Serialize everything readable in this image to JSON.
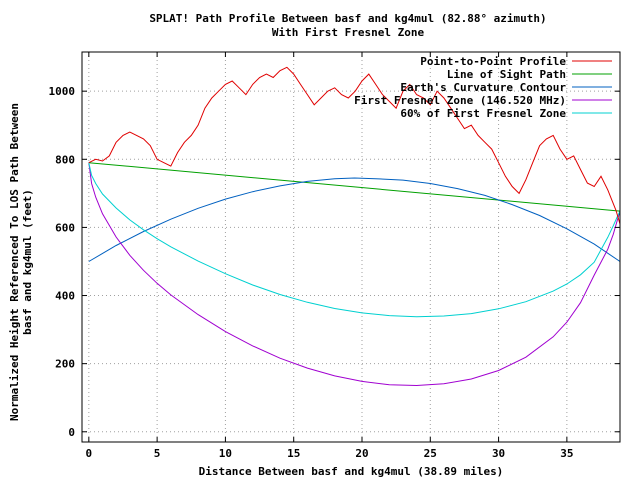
{
  "chart_data": {
    "type": "line",
    "title": "SPLAT! Path Profile Between basf and kg4mul (82.88° azimuth)",
    "subtitle": "With First Fresnel Zone",
    "xlabel": "Distance Between basf and kg4mul (38.89 miles)",
    "ylabel_line1": "Normalized Height Referenced To LOS Path Between",
    "ylabel_line2": "basf and kg4mul (feet)",
    "xlim": [
      -0.5,
      38.89
    ],
    "ylim": [
      -30,
      1115
    ],
    "xticks": [
      0,
      5,
      10,
      15,
      20,
      25,
      30,
      35
    ],
    "yticks": [
      0,
      200,
      400,
      600,
      800,
      1000
    ],
    "grid": true,
    "legend_position": "top-right",
    "series": [
      {
        "name": "Point-to-Point Profile",
        "color": "#e00000",
        "x": [
          0,
          0.5,
          1,
          1.5,
          2,
          2.5,
          3,
          3.5,
          4,
          4.5,
          5,
          5.5,
          6,
          6.5,
          7,
          7.5,
          8,
          8.5,
          9,
          9.5,
          10,
          10.5,
          11,
          11.5,
          12,
          12.5,
          13,
          13.5,
          14,
          14.5,
          15,
          15.5,
          16,
          16.5,
          17,
          17.5,
          18,
          18.5,
          19,
          19.5,
          20,
          20.5,
          21,
          21.5,
          22,
          22.5,
          23,
          23.5,
          24,
          24.5,
          25,
          25.5,
          26,
          26.5,
          27,
          27.5,
          28,
          28.5,
          29,
          29.5,
          30,
          30.5,
          31,
          31.5,
          32,
          32.5,
          33,
          33.5,
          34,
          34.5,
          35,
          35.5,
          36,
          36.5,
          37,
          37.5,
          38,
          38.3,
          38.6,
          38.89
        ],
        "y": [
          790,
          800,
          795,
          810,
          850,
          870,
          880,
          870,
          860,
          840,
          800,
          790,
          780,
          820,
          850,
          870,
          900,
          950,
          980,
          1000,
          1020,
          1030,
          1010,
          990,
          1020,
          1040,
          1050,
          1040,
          1060,
          1070,
          1050,
          1020,
          990,
          960,
          980,
          1000,
          1010,
          990,
          980,
          1000,
          1030,
          1050,
          1020,
          990,
          970,
          950,
          1000,
          1020,
          990,
          980,
          960,
          1000,
          980,
          950,
          920,
          890,
          900,
          870,
          850,
          830,
          790,
          750,
          720,
          700,
          740,
          790,
          840,
          860,
          870,
          830,
          800,
          810,
          770,
          730,
          720,
          750,
          710,
          680,
          650,
          610
        ]
      },
      {
        "name": "Line of Sight Path",
        "color": "#00a000",
        "x": [
          0,
          38.89
        ],
        "y": [
          790,
          648
        ]
      },
      {
        "name": "Earth's Curvature Contour",
        "color": "#0060c0",
        "x": [
          0,
          2,
          4,
          6,
          8,
          10,
          12,
          14,
          16,
          18,
          19.45,
          21,
          23,
          25,
          27,
          29,
          31,
          33,
          35,
          37,
          38.89
        ],
        "y": [
          500,
          547,
          588,
          624,
          656,
          683,
          705,
          722,
          735,
          743,
          745,
          743,
          739,
          729,
          714,
          694,
          667,
          635,
          596,
          551,
          500
        ]
      },
      {
        "name": "First Fresnel Zone (146.520 MHz)",
        "color": "#a000d0",
        "x": [
          0,
          0.2,
          0.5,
          1,
          2,
          3,
          4,
          5,
          6,
          8,
          10,
          12,
          14,
          16,
          18,
          20,
          22,
          24,
          26,
          28,
          30,
          32,
          34,
          35,
          36,
          37,
          38,
          38.4,
          38.7,
          38.89
        ],
        "y": [
          790,
          729,
          689,
          640,
          572,
          518,
          474,
          436,
          402,
          344,
          294,
          252,
          216,
          187,
          164,
          148,
          138,
          136,
          141,
          155,
          180,
          219,
          279,
          322,
          379,
          460,
          536,
          580,
          622,
          648
        ]
      },
      {
        "name": "60% of First Fresnel Zone",
        "color": "#00d0d0",
        "x": [
          0,
          0.2,
          0.5,
          1,
          2,
          3,
          4,
          5,
          6,
          8,
          10,
          12,
          14,
          16,
          18,
          20,
          22,
          24,
          26,
          28,
          30,
          32,
          34,
          35,
          36,
          37,
          38,
          38.4,
          38.7,
          38.89
        ],
        "y": [
          790,
          753,
          729,
          698,
          657,
          622,
          593,
          567,
          543,
          501,
          464,
          431,
          403,
          380,
          362,
          349,
          341,
          338,
          340,
          347,
          361,
          382,
          413,
          434,
          461,
          498,
          571,
          605,
          632,
          648
        ]
      }
    ]
  }
}
